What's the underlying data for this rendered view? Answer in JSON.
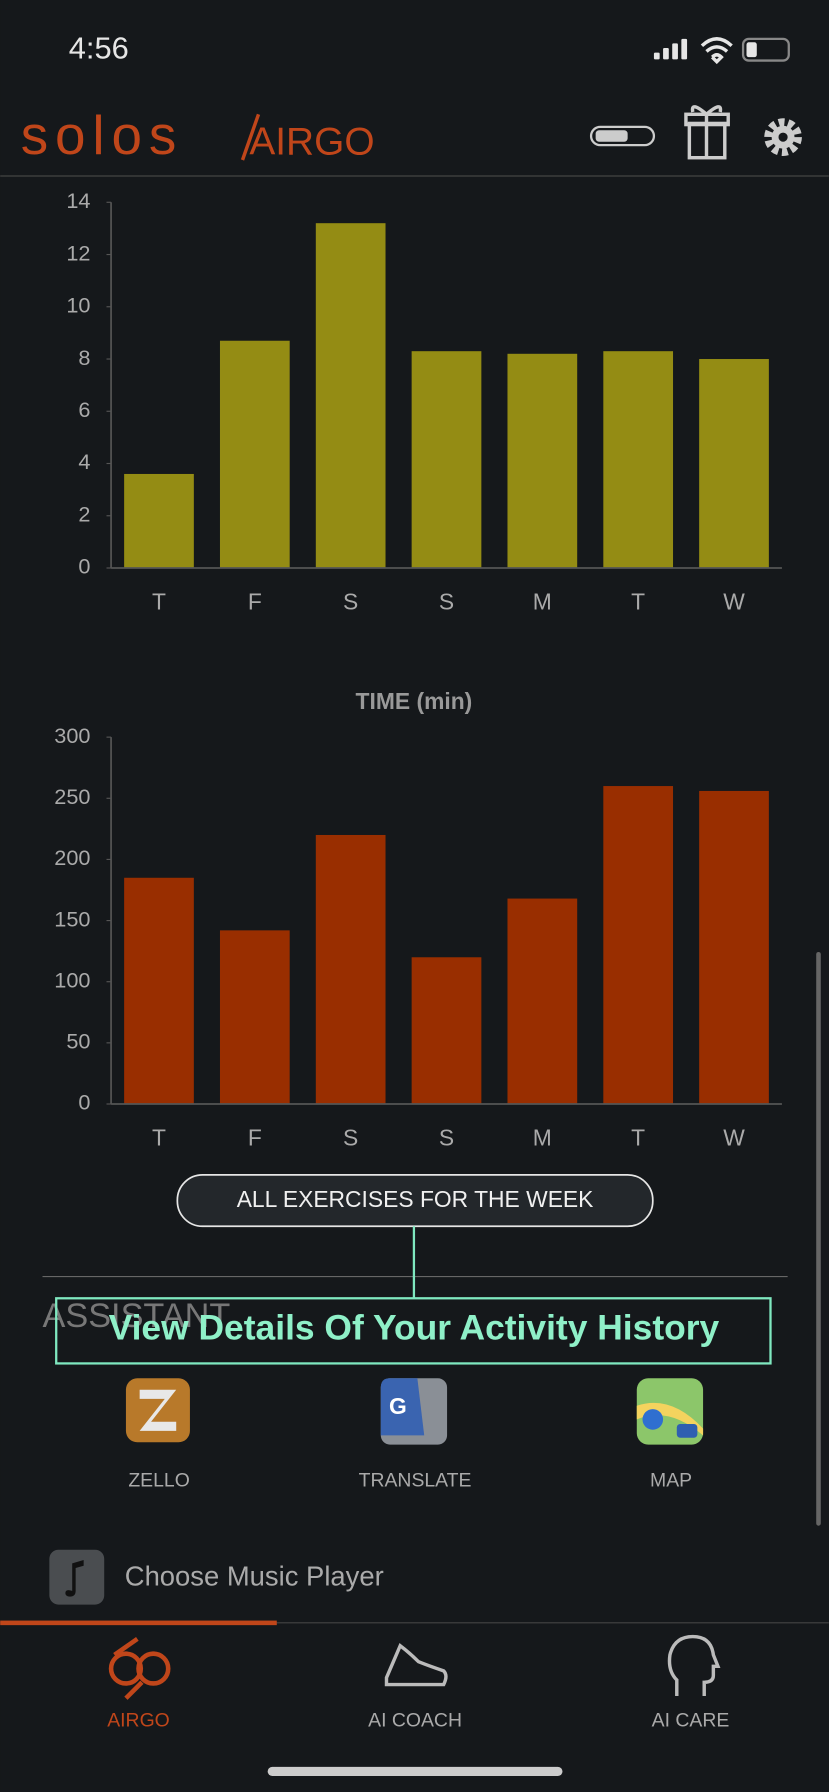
{
  "status": {
    "time": "4:56"
  },
  "header": {
    "brand": "solos",
    "product": "AIRGO"
  },
  "chart_data": [
    {
      "type": "bar",
      "categories": [
        "T",
        "F",
        "S",
        "S",
        "M",
        "T",
        "W"
      ],
      "values": [
        3.6,
        8.7,
        13.2,
        8.3,
        8.2,
        8.3,
        8.0
      ],
      "color": "#948c14",
      "ylim": [
        0,
        14
      ],
      "yticks": [
        0,
        2,
        4,
        6,
        8,
        10,
        12,
        14
      ]
    },
    {
      "type": "bar",
      "title": "TIME (min)",
      "categories": [
        "T",
        "F",
        "S",
        "S",
        "M",
        "T",
        "W"
      ],
      "values": [
        185,
        142,
        220,
        120,
        168,
        260,
        256
      ],
      "color": "#992e00",
      "ylim": [
        0,
        300
      ],
      "yticks": [
        0,
        50,
        100,
        150,
        200,
        250,
        300
      ]
    }
  ],
  "week_button": "ALL EXERCISES FOR THE WEEK",
  "assistant": {
    "title": "ASSISTANT",
    "apps": [
      "ZELLO",
      "TRANSLATE",
      "MAP"
    ]
  },
  "tooltip": "View Details Of Your Activity History",
  "music": "Choose Music Player",
  "tabs": [
    "AIRGO",
    "AI COACH",
    "AI CARE"
  ]
}
